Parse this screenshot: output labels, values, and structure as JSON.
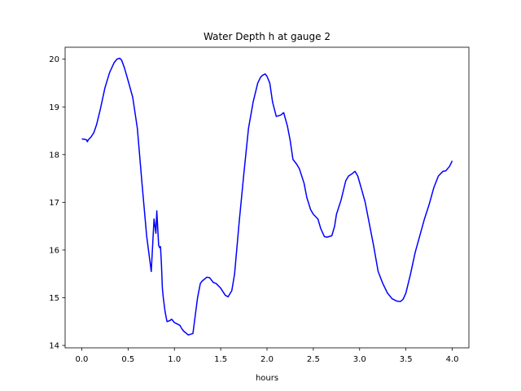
{
  "chart_data": {
    "type": "line",
    "title": "Water Depth h at gauge 2",
    "xlabel": "hours",
    "ylabel": "",
    "xlim": [
      -0.18,
      4.18
    ],
    "ylim": [
      13.95,
      20.25
    ],
    "xticks": [
      0.0,
      0.5,
      1.0,
      1.5,
      2.0,
      2.5,
      3.0,
      3.5,
      4.0
    ],
    "xtick_labels": [
      "0.0",
      "0.5",
      "1.0",
      "1.5",
      "2.0",
      "2.5",
      "3.0",
      "3.5",
      "4.0"
    ],
    "yticks": [
      14,
      15,
      16,
      17,
      18,
      19,
      20
    ],
    "ytick_labels": [
      "14",
      "15",
      "16",
      "17",
      "18",
      "19",
      "20"
    ],
    "grid": false,
    "series": [
      {
        "color": "#0000ff",
        "x": [
          0.0,
          0.03,
          0.05,
          0.06,
          0.07,
          0.1,
          0.13,
          0.16,
          0.2,
          0.25,
          0.3,
          0.35,
          0.38,
          0.41,
          0.43,
          0.46,
          0.5,
          0.55,
          0.6,
          0.65,
          0.7,
          0.75,
          0.78,
          0.8,
          0.81,
          0.83,
          0.84,
          0.85,
          0.86,
          0.87,
          0.88,
          0.9,
          0.92,
          0.95,
          0.97,
          1.0,
          1.03,
          1.06,
          1.08,
          1.1,
          1.15,
          1.2,
          1.23,
          1.25,
          1.28,
          1.3,
          1.35,
          1.38,
          1.42,
          1.45,
          1.5,
          1.55,
          1.58,
          1.62,
          1.65,
          1.7,
          1.75,
          1.8,
          1.85,
          1.9,
          1.93,
          1.95,
          1.98,
          2.0,
          2.03,
          2.06,
          2.1,
          2.15,
          2.18,
          2.22,
          2.25,
          2.28,
          2.32,
          2.35,
          2.4,
          2.43,
          2.47,
          2.5,
          2.55,
          2.58,
          2.62,
          2.65,
          2.7,
          2.73,
          2.75,
          2.8,
          2.85,
          2.88,
          2.92,
          2.95,
          2.98,
          3.02,
          3.06,
          3.1,
          3.15,
          3.2,
          3.25,
          3.3,
          3.35,
          3.4,
          3.44,
          3.47,
          3.5,
          3.55,
          3.6,
          3.65,
          3.7,
          3.75,
          3.8,
          3.85,
          3.9,
          3.93,
          3.97,
          4.0
        ],
        "y": [
          18.33,
          18.32,
          18.31,
          18.27,
          18.31,
          18.37,
          18.46,
          18.63,
          18.95,
          19.4,
          19.72,
          19.93,
          20.0,
          20.02,
          19.98,
          19.82,
          19.55,
          19.2,
          18.55,
          17.4,
          16.3,
          15.55,
          16.65,
          16.35,
          16.82,
          16.1,
          16.05,
          16.07,
          15.7,
          15.2,
          15.0,
          14.7,
          14.5,
          14.52,
          14.55,
          14.48,
          14.45,
          14.42,
          14.35,
          14.3,
          14.22,
          14.25,
          14.7,
          15.0,
          15.3,
          15.35,
          15.43,
          15.42,
          15.32,
          15.3,
          15.2,
          15.05,
          15.02,
          15.15,
          15.5,
          16.6,
          17.6,
          18.55,
          19.1,
          19.5,
          19.62,
          19.66,
          19.69,
          19.64,
          19.5,
          19.1,
          18.8,
          18.83,
          18.88,
          18.6,
          18.3,
          17.9,
          17.8,
          17.7,
          17.4,
          17.1,
          16.85,
          16.75,
          16.65,
          16.45,
          16.28,
          16.27,
          16.3,
          16.5,
          16.75,
          17.05,
          17.45,
          17.55,
          17.6,
          17.65,
          17.55,
          17.28,
          17.0,
          16.6,
          16.1,
          15.55,
          15.3,
          15.1,
          14.98,
          14.93,
          14.92,
          14.97,
          15.1,
          15.5,
          15.95,
          16.3,
          16.65,
          16.95,
          17.3,
          17.55,
          17.65,
          17.66,
          17.75,
          17.87
        ]
      }
    ]
  }
}
